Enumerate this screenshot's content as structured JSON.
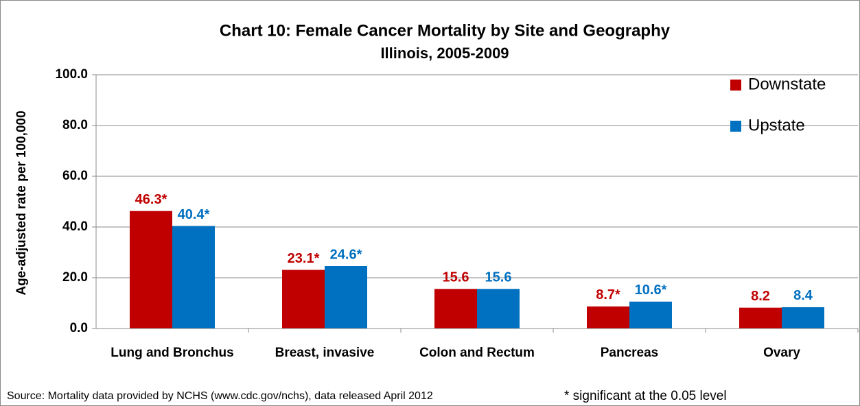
{
  "chart_data": {
    "type": "bar",
    "title": "Chart 10:  Female Cancer Mortality by Site and Geography",
    "subtitle": "Illinois, 2005-2009",
    "y_label": "Age-adjusted rate per 100,000",
    "categories": [
      "Lung and Bronchus",
      "Breast, invasive",
      "Colon and Rectum",
      "Pancreas",
      "Ovary"
    ],
    "series": [
      {
        "name": "Downstate",
        "color": "#c00000",
        "values": [
          46.3,
          23.1,
          15.6,
          8.7,
          8.2
        ],
        "value_labels": [
          "46.3*",
          "23.1*",
          "15.6",
          "8.7*",
          "8.2"
        ]
      },
      {
        "name": "Upstate",
        "color": "#0070c0",
        "values": [
          40.4,
          24.6,
          15.6,
          10.6,
          8.4
        ],
        "value_labels": [
          "40.4*",
          "24.6*",
          "15.6",
          "10.6*",
          "8.4"
        ]
      }
    ],
    "ylim": [
      0,
      100
    ],
    "yticks": [
      {
        "value": 0,
        "label": "0.0"
      },
      {
        "value": 20,
        "label": "20.0"
      },
      {
        "value": 40,
        "label": "40.0"
      },
      {
        "value": 60,
        "label": "60.0"
      },
      {
        "value": 80,
        "label": "80.0"
      },
      {
        "value": 100,
        "label": "100.0"
      }
    ],
    "grid": true,
    "legend": "right",
    "source": "Source: Mortality data provided by NCHS (www.cdc.gov/nchs), data released April 2012",
    "note": "* significant at the 0.05 level"
  }
}
